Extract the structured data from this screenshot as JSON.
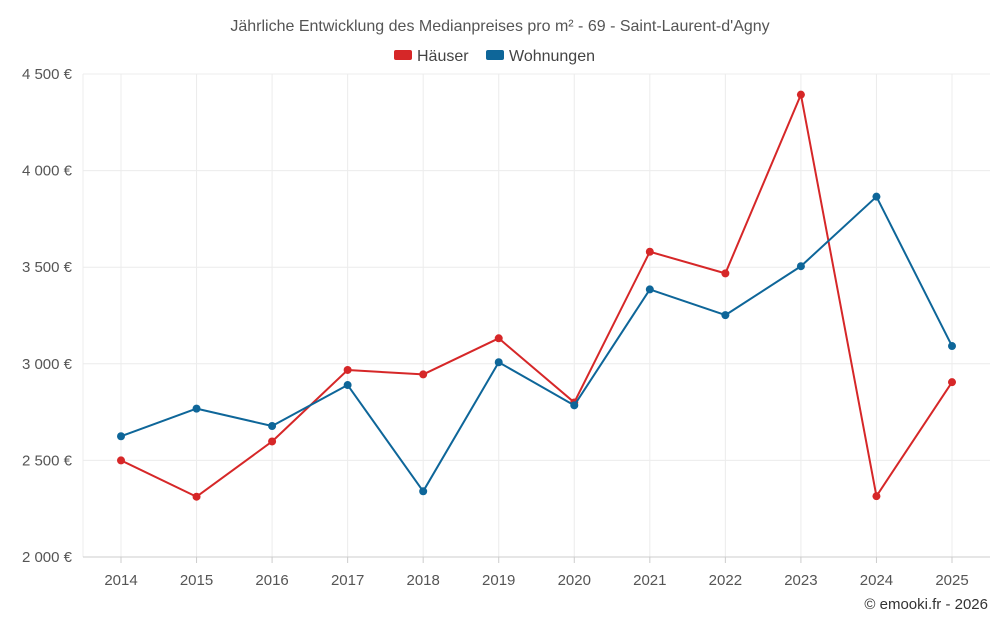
{
  "chart_data": {
    "type": "line",
    "title": "Jährliche Entwicklung des Medianpreises pro m² - 69 - Saint-Laurent-d'Agny",
    "categories": [
      "2014",
      "2015",
      "2016",
      "2017",
      "2018",
      "2019",
      "2020",
      "2021",
      "2022",
      "2023",
      "2024",
      "2025"
    ],
    "ylim": [
      2000,
      4500
    ],
    "yticks": [
      2000,
      2500,
      3000,
      3500,
      4000,
      4500
    ],
    "ytick_labels": [
      "2 000 €",
      "2 500 €",
      "3 000 €",
      "3 500 €",
      "4 000 €",
      "4 500 €"
    ],
    "legend_position": "top-center",
    "grid": true,
    "series": [
      {
        "name": "Häuser",
        "color": "#d62728",
        "values": [
          2500,
          2312,
          2598,
          2968,
          2945,
          3132,
          2800,
          3580,
          3468,
          4393,
          2315,
          2905
        ]
      },
      {
        "name": "Wohnungen",
        "color": "#0e6699",
        "values": [
          2625,
          2768,
          2678,
          2890,
          2340,
          3008,
          2785,
          3385,
          3252,
          3505,
          3865,
          3092
        ]
      }
    ],
    "credit": "© emooki.fr - 2026"
  }
}
